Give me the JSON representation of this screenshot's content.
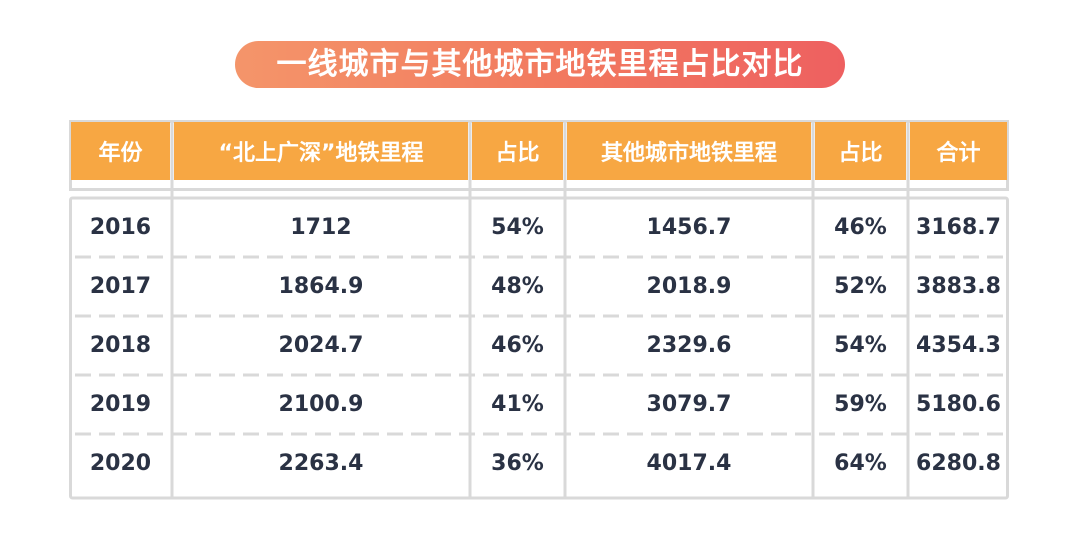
{
  "title": "一线城市与其他城市地铁里程占比对比",
  "colors": {
    "header_bg": "#f7a743",
    "title_gradient_start": "#f4956a",
    "title_gradient_end": "#ee6060",
    "grid": "#d9d9d9",
    "body_text": "#2a3244"
  },
  "chart_data": {
    "type": "table",
    "title": "一线城市与其他城市地铁里程占比对比",
    "columns": [
      "年份",
      "“北上广深”地铁里程",
      "占比",
      "其他城市地铁里程",
      "占比",
      "合计"
    ],
    "rows": [
      [
        "2016",
        "1712",
        "54%",
        "1456.7",
        "46%",
        "3168.7"
      ],
      [
        "2017",
        "1864.9",
        "48%",
        "2018.9",
        "52%",
        "3883.8"
      ],
      [
        "2018",
        "2024.7",
        "46%",
        "2329.6",
        "54%",
        "4354.3"
      ],
      [
        "2019",
        "2100.9",
        "41%",
        "3079.7",
        "59%",
        "5180.6"
      ],
      [
        "2020",
        "2263.4",
        "36%",
        "4017.4",
        "64%",
        "6280.8"
      ]
    ]
  }
}
